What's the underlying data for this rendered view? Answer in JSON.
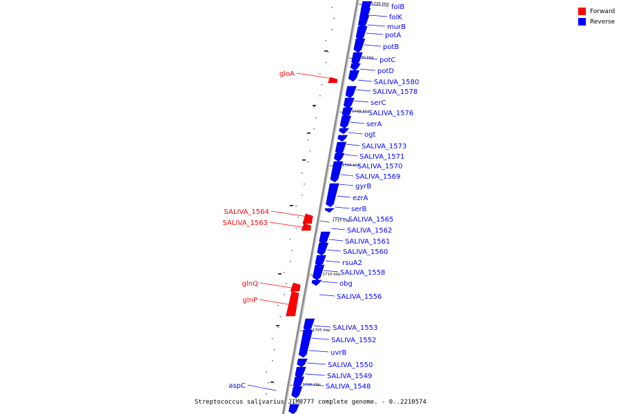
{
  "caption": "Streptococcus salivarius JIM8777 complete genome. - 0..2210574",
  "legend": [
    {
      "label": "Forward",
      "color": "#ff0000"
    },
    {
      "label": "Reverse",
      "color": "#0000ff"
    }
  ],
  "colors": {
    "forward": "#ff0000",
    "reverse": "#0000ff",
    "backbone": "#888888"
  },
  "scale": {
    "kbp_values": [
      1735,
      1730,
      1725,
      1720,
      1715,
      1710,
      1705,
      1700
    ],
    "unit": "kbp"
  },
  "forward_genes": [
    "gloA",
    "SALIVA_1564",
    "SALIVA_1563",
    "glnQ",
    "glnP",
    "aspC"
  ],
  "reverse_genes": [
    "folB",
    "folK",
    "murB",
    "potA",
    "potB",
    "potC",
    "potD",
    "SALIVA_1580",
    "SALIVA_1578",
    "serC",
    "SALIVA_1576",
    "serA",
    "ogt",
    "SALIVA_1573",
    "SALIVA_1571",
    "SALIVA_1570",
    "SALIVA_1569",
    "gyrB",
    "ezrA",
    "serB",
    "SALIVA_1565",
    "SALIVA_1562",
    "SALIVA_1561",
    "SALIVA_1560",
    "rsuA2",
    "SALIVA_1558",
    "obg",
    "SALIVA_1556",
    "SALIVA_1553",
    "SALIVA_1552",
    "uvrB",
    "SALIVA_1550",
    "SALIVA_1549",
    "SALIVA_1548"
  ]
}
